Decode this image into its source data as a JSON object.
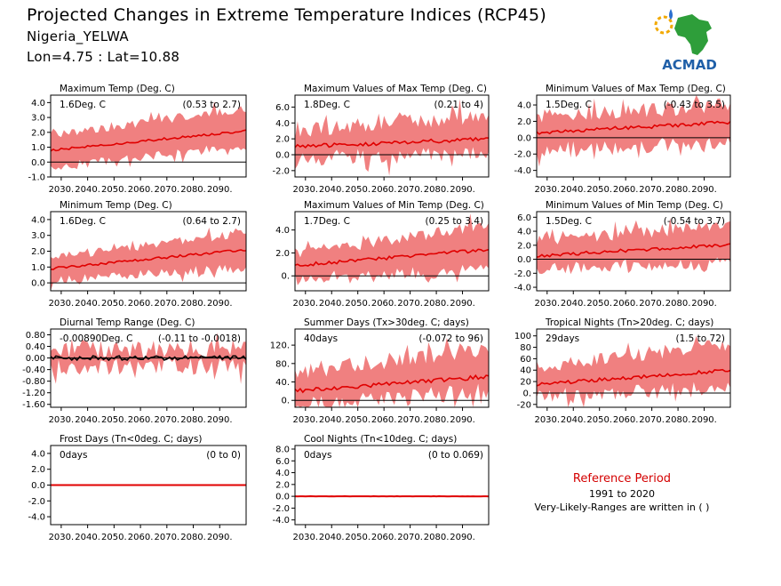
{
  "header": {
    "title": "Projected Changes in Extreme Temperature Indices (RCP45)",
    "location": "Nigeria_YELWA",
    "coords": "Lon=4.75 : Lat=10.88"
  },
  "logo": {
    "text": "ACMAD",
    "colors": {
      "africa": "#2e9e3a",
      "text": "#1f5fa8",
      "sun": "#f2a900",
      "drop": "#2a6fd0"
    }
  },
  "reference": {
    "title": "Reference Period",
    "years": "1991 to 2020",
    "note": "Very-Likely-Ranges are written in ( )"
  },
  "colors": {
    "band": "#f08080",
    "line": "#e00000",
    "zero": "#000000"
  },
  "chart_data": [
    {
      "type": "area",
      "title": "Maximum Temp (Deg. C)",
      "value_label": "1.6Deg. C",
      "range_label": "(0.53 to 2.7)",
      "ylim": [
        -1,
        4.5
      ],
      "yticks": [
        "-1.0",
        "0.0",
        "1.0",
        "2.0",
        "3.0",
        "4.0"
      ],
      "ytick_values": [
        -1,
        0,
        1,
        2,
        3,
        4
      ],
      "x_range": [
        2026,
        2100
      ],
      "xticks": [
        "2030.",
        "2040.",
        "2050.",
        "2060.",
        "2070.",
        "2080.",
        "2090."
      ],
      "mean_start": 0.8,
      "mean_end": 2.1,
      "lo_start": -0.3,
      "lo_end": 1.1,
      "hi_start": 1.8,
      "hi_end": 3.6,
      "noise": 0.3,
      "line_color": "#e00000"
    },
    {
      "type": "area",
      "title": "Maximum Values of Max Temp (Deg. C)",
      "value_label": "1.8Deg. C",
      "range_label": "(0.21 to 4)",
      "ylim": [
        -2.8,
        7.5
      ],
      "yticks": [
        "-2.0",
        "0.0",
        "2.0",
        "4.0",
        "6.0"
      ],
      "ytick_values": [
        -2,
        0,
        2,
        4,
        6
      ],
      "x_range": [
        2026,
        2100
      ],
      "xticks": [
        "2030.",
        "2040.",
        "2050.",
        "2060.",
        "2070.",
        "2080.",
        "2090."
      ],
      "mean_start": 1.0,
      "mean_end": 2.0,
      "lo_start": -0.5,
      "lo_end": 0.2,
      "hi_start": 3.0,
      "hi_end": 5.0,
      "noise": 1.0,
      "line_color": "#e00000"
    },
    {
      "type": "area",
      "title": "Minimum Values of Max Temp (Deg. C)",
      "value_label": "1.5Deg. C",
      "range_label": "(-0.43 to 3.5)",
      "ylim": [
        -4.8,
        5.2
      ],
      "yticks": [
        "-4.0",
        "-2.0",
        "0.0",
        "2.0",
        "4.0"
      ],
      "ytick_values": [
        -4,
        -2,
        0,
        2,
        4
      ],
      "x_range": [
        2026,
        2100
      ],
      "xticks": [
        "2030.",
        "2040.",
        "2050.",
        "2060.",
        "2070.",
        "2080.",
        "2090."
      ],
      "mean_start": 0.6,
      "mean_end": 1.9,
      "lo_start": -1.5,
      "lo_end": -0.5,
      "hi_start": 2.5,
      "hi_end": 4.0,
      "noise": 0.9,
      "line_color": "#e00000"
    },
    {
      "type": "area",
      "title": "Minimum Temp (Deg. C)",
      "value_label": "1.6Deg. C",
      "range_label": "(0.64 to 2.7)",
      "ylim": [
        -0.5,
        4.5
      ],
      "yticks": [
        "0.0",
        "1.0",
        "2.0",
        "3.0",
        "4.0"
      ],
      "ytick_values": [
        0,
        1,
        2,
        3,
        4
      ],
      "x_range": [
        2026,
        2100
      ],
      "xticks": [
        "2030.",
        "2040.",
        "2050.",
        "2060.",
        "2070.",
        "2080.",
        "2090."
      ],
      "mean_start": 0.9,
      "mean_end": 2.1,
      "lo_start": 0.2,
      "lo_end": 1.0,
      "hi_start": 1.6,
      "hi_end": 3.2,
      "noise": 0.3,
      "line_color": "#e00000"
    },
    {
      "type": "area",
      "title": "Maximum Values of Min Temp (Deg. C)",
      "value_label": "1.7Deg. C",
      "range_label": "(0.25 to 3.4)",
      "ylim": [
        -1.3,
        5.6
      ],
      "yticks": [
        "0.",
        "2.0",
        "4.0"
      ],
      "ytick_values": [
        0,
        2,
        4
      ],
      "x_range": [
        2026,
        2100
      ],
      "xticks": [
        "2030.",
        "2040.",
        "2050.",
        "2060.",
        "2070.",
        "2080.",
        "2090."
      ],
      "mean_start": 0.9,
      "mean_end": 2.3,
      "lo_start": -0.3,
      "lo_end": 0.5,
      "hi_start": 2.0,
      "hi_end": 4.3,
      "noise": 0.6,
      "line_color": "#e00000"
    },
    {
      "type": "area",
      "title": "Minimum Values of Min Temp (Deg. C)",
      "value_label": "1.5Deg. C",
      "range_label": "(-0.54 to 3.7)",
      "ylim": [
        -4.5,
        6.8
      ],
      "yticks": [
        "-4.0",
        "-2.0",
        "0.0",
        "2.0",
        "4.0",
        "6.0"
      ],
      "ytick_values": [
        -4,
        -2,
        0,
        2,
        4,
        6
      ],
      "x_range": [
        2026,
        2100
      ],
      "xticks": [
        "2030.",
        "2040.",
        "2050.",
        "2060.",
        "2070.",
        "2080.",
        "2090."
      ],
      "mean_start": 0.5,
      "mean_end": 2.1,
      "lo_start": -1.5,
      "lo_end": -0.4,
      "hi_start": 2.8,
      "hi_end": 4.8,
      "noise": 1.0,
      "line_color": "#e00000"
    },
    {
      "type": "area",
      "title": "Diurnal Temp Range (Deg. C)",
      "value_label": "-0.00890Deg. C",
      "range_label": "(-0.11 to -0.0018)",
      "ylim": [
        -1.7,
        1.0
      ],
      "yticks": [
        "-1.60",
        "-1.20",
        "-0.80",
        "-0.40",
        "0.00",
        "0.40",
        "0.80"
      ],
      "ytick_values": [
        -1.6,
        -1.2,
        -0.8,
        -0.4,
        0,
        0.4,
        0.8
      ],
      "x_range": [
        2026,
        2100
      ],
      "xticks": [
        "2030.",
        "2040.",
        "2050.",
        "2060.",
        "2070.",
        "2080.",
        "2090."
      ],
      "mean_start": 0.0,
      "mean_end": 0.0,
      "lo_start": -0.3,
      "lo_end": -0.3,
      "hi_start": 0.3,
      "hi_end": 0.3,
      "noise": 0.3,
      "line_color": "#000000"
    },
    {
      "type": "area",
      "title": "Summer Days (Tx>30deg. C; days)",
      "value_label": "40days",
      "range_label": "(-0.072 to 96)",
      "ylim": [
        -15,
        155
      ],
      "yticks": [
        "0.",
        "40.",
        "80.",
        "120."
      ],
      "ytick_values": [
        0,
        40,
        80,
        120
      ],
      "x_range": [
        2026,
        2100
      ],
      "xticks": [
        "2030.",
        "2040.",
        "2050.",
        "2060.",
        "2070.",
        "2080.",
        "2090."
      ],
      "mean_start": 20,
      "mean_end": 52,
      "lo_start": -5,
      "lo_end": 20,
      "hi_start": 60,
      "hi_end": 115,
      "noise": 18,
      "line_color": "#e00000"
    },
    {
      "type": "area",
      "title": "Tropical Nights (Tn>20deg. C; days)",
      "value_label": "29days",
      "range_label": "(1.5 to 72)",
      "ylim": [
        -25,
        112
      ],
      "yticks": [
        "-20",
        "0.",
        "20",
        "40",
        "60",
        "80",
        "100"
      ],
      "ytick_values": [
        -20,
        0,
        20,
        40,
        60,
        80,
        100
      ],
      "x_range": [
        2026,
        2100
      ],
      "xticks": [
        "2030.",
        "2040.",
        "2050.",
        "2060.",
        "2070.",
        "2080.",
        "2090."
      ],
      "mean_start": 15,
      "mean_end": 40,
      "lo_start": -5,
      "lo_end": 10,
      "hi_start": 45,
      "hi_end": 85,
      "noise": 12,
      "line_color": "#e00000"
    },
    {
      "type": "line",
      "title": "Frost Days (Tn<0deg. C; days)",
      "value_label": "0days",
      "range_label": "(0 to 0)",
      "ylim": [
        -5,
        5
      ],
      "yticks": [
        "-4.0",
        "-2.0",
        "0.0",
        "2.0",
        "4.0"
      ],
      "ytick_values": [
        -4,
        -2,
        0,
        2,
        4
      ],
      "x_range": [
        2026,
        2100
      ],
      "xticks": [
        "2030.",
        "2040.",
        "2050.",
        "2060.",
        "2070.",
        "2080.",
        "2090."
      ],
      "mean_start": 0,
      "mean_end": 0,
      "lo_start": 0,
      "lo_end": 0,
      "hi_start": 0,
      "hi_end": 0,
      "noise": 0,
      "line_color": "#e00000"
    },
    {
      "type": "line",
      "title": "Cool Nights (Tn<10deg. C; days)",
      "value_label": "0days",
      "range_label": "(0 to 0.069)",
      "ylim": [
        -4.8,
        8.6
      ],
      "yticks": [
        "-4.0",
        "-2.0",
        "0.0",
        "2.0",
        "4.0",
        "6.0",
        "8.0"
      ],
      "ytick_values": [
        -4,
        -2,
        0,
        2,
        4,
        6,
        8
      ],
      "x_range": [
        2026,
        2100
      ],
      "xticks": [
        "2030.",
        "2040.",
        "2050.",
        "2060.",
        "2070.",
        "2080.",
        "2090."
      ],
      "mean_start": 0,
      "mean_end": 0,
      "lo_start": 0,
      "lo_end": 0,
      "hi_start": 0,
      "hi_end": 0.06,
      "noise": 0.05,
      "line_color": "#e00000"
    }
  ]
}
